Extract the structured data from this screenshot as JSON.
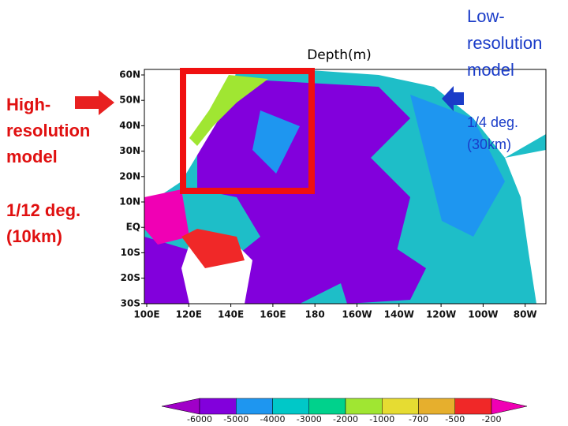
{
  "map": {
    "title": "Depth(m)",
    "lat_labels": [
      "60N",
      "50N",
      "40N",
      "30N",
      "20N",
      "10N",
      "EQ",
      "10S",
      "20S",
      "30S"
    ],
    "lon_labels": [
      "100E",
      "120E",
      "140E",
      "160E",
      "180",
      "160W",
      "140W",
      "120W",
      "100W",
      "80W"
    ]
  },
  "left_note": {
    "lines": [
      "High-",
      "resolution",
      "model"
    ],
    "detail": [
      "1/12 deg.",
      "(10km)"
    ]
  },
  "right_note": {
    "lines": [
      "Low-",
      "resolution",
      "model"
    ],
    "detail": [
      "1/4 deg.",
      "(30km)"
    ]
  },
  "colorbar": {
    "labels": [
      "-6000",
      "-5000",
      "-4000",
      "-3000",
      "-2000",
      "-1000",
      "-700",
      "-500",
      "-200"
    ],
    "colors": [
      "#a000c8",
      "#8200dc",
      "#1e96f0",
      "#00c8c8",
      "#00d28c",
      "#a0e632",
      "#e6dc32",
      "#e6af2d",
      "#f02828",
      "#f000b4"
    ]
  }
}
